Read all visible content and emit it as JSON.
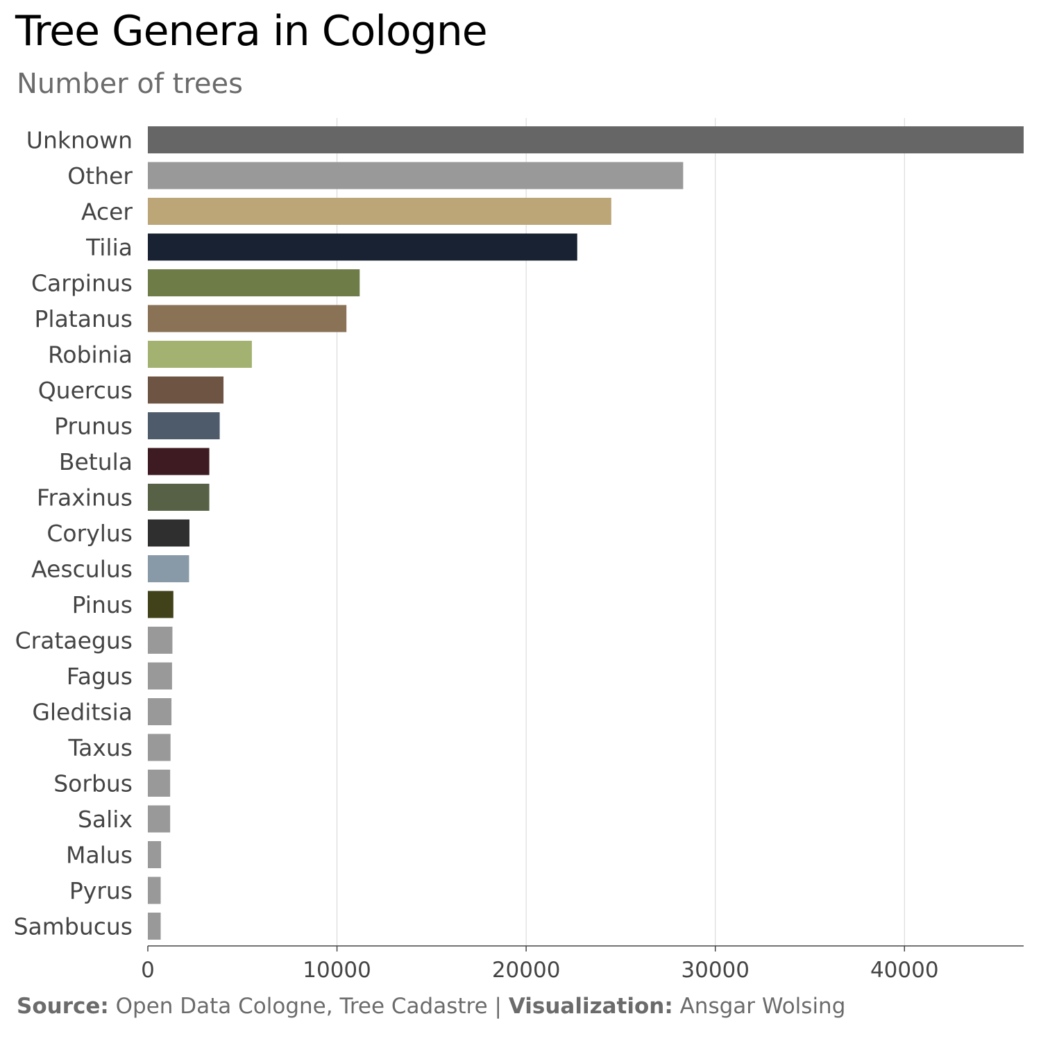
{
  "chart_data": {
    "type": "bar",
    "orientation": "horizontal",
    "title": "Tree Genera in Cologne",
    "subtitle": "Number of trees",
    "xlabel": "",
    "ylabel": "",
    "xlim": [
      0,
      46300
    ],
    "xticks": [
      0,
      10000,
      20000,
      30000,
      40000
    ],
    "xtick_labels": [
      "0",
      "10000",
      "20000",
      "30000",
      "40000"
    ],
    "grid": "vertical",
    "categories": [
      "Unknown",
      "Other",
      "Acer",
      "Tilia",
      "Carpinus",
      "Platanus",
      "Robinia",
      "Quercus",
      "Prunus",
      "Betula",
      "Fraxinus",
      "Corylus",
      "Aesculus",
      "Pinus",
      "Crataegus",
      "Fagus",
      "Gleditsia",
      "Taxus",
      "Sorbus",
      "Salix",
      "Malus",
      "Pyrus",
      "Sambucus"
    ],
    "values": [
      46300,
      28300,
      24500,
      22700,
      11200,
      10500,
      5500,
      4000,
      3800,
      3250,
      3250,
      2200,
      2180,
      1350,
      1300,
      1280,
      1250,
      1200,
      1180,
      1180,
      700,
      680,
      680
    ],
    "colors": [
      "#666666",
      "#999999",
      "#bca576",
      "#182232",
      "#6e7c47",
      "#8a7256",
      "#a3b270",
      "#6d5443",
      "#4d5b6b",
      "#3e1b22",
      "#566146",
      "#2f2f2f",
      "#8899a8",
      "#414219",
      "#999999",
      "#999999",
      "#999999",
      "#999999",
      "#999999",
      "#999999",
      "#999999",
      "#999999",
      "#999999"
    ],
    "caption": {
      "source_label": "Source:",
      "source_text": " Open Data Cologne, Tree Cadastre | ",
      "viz_label": "Visualization:",
      "viz_text": " Ansgar Wolsing"
    }
  }
}
